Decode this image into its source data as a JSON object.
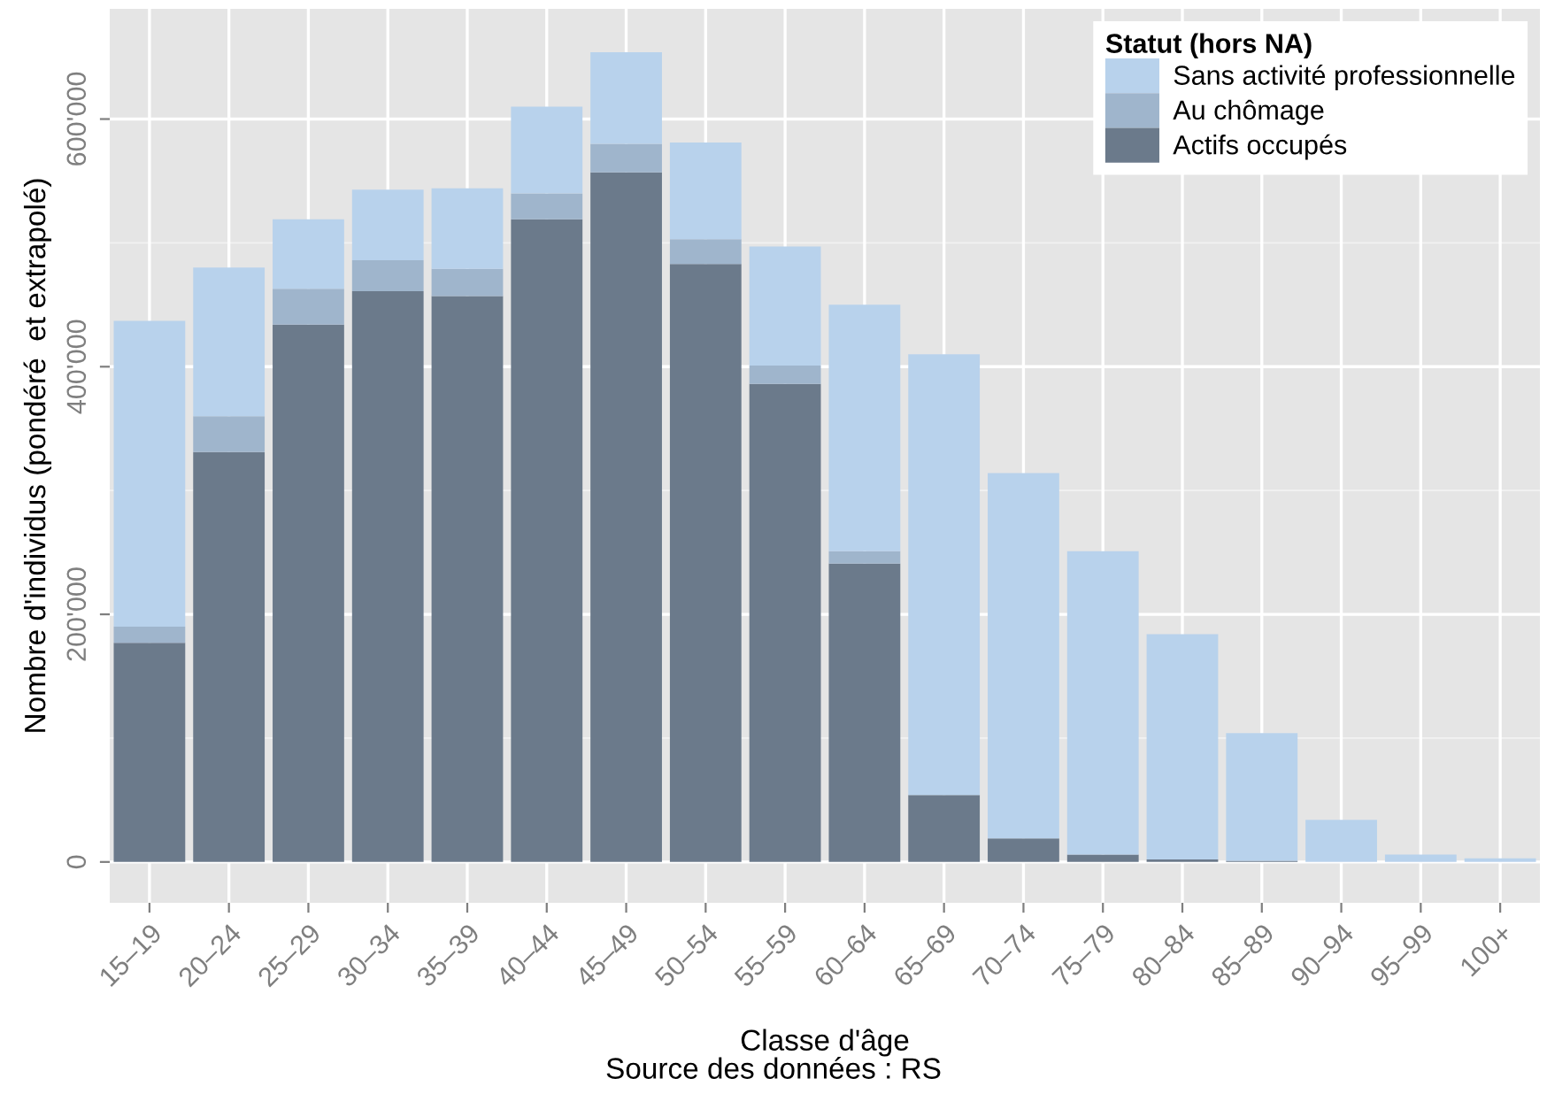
{
  "chart_data": {
    "type": "bar",
    "stacked": true,
    "xlabel": "Classe d'âge",
    "ylabel": "Nombre d'individus (pondéré  et extrapolé)",
    "legend_title": "Statut (hors NA)",
    "legend": "top right",
    "grid": true,
    "annotations": [
      "Source des données : RS"
    ],
    "categories": [
      "15–19",
      "20–24",
      "25–29",
      "30–34",
      "35–39",
      "40–44",
      "45–49",
      "50–54",
      "55–59",
      "60–64",
      "65–69",
      "70–74",
      "75–79",
      "80–84",
      "85–89",
      "90–94",
      "95–99",
      "100+"
    ],
    "ylim": [
      -33000,
      689000
    ],
    "yticks": [
      {
        "value": 0,
        "label": "0"
      },
      {
        "value": 200000,
        "label": "200'000"
      },
      {
        "value": 400000,
        "label": "400'000"
      },
      {
        "value": 600000,
        "label": "600'000"
      }
    ],
    "series": [
      {
        "name": "Actifs occupés",
        "color": "#6b7a8b",
        "values": [
          177000,
          331000,
          434000,
          461000,
          457000,
          519000,
          557000,
          483000,
          386000,
          241000,
          54000,
          19000,
          6000,
          2000,
          1000,
          0,
          0,
          0
        ]
      },
      {
        "name": "Au chômage",
        "color": "#9fb5cc",
        "values": [
          13000,
          29000,
          29000,
          25000,
          22000,
          21000,
          23000,
          20000,
          15000,
          10000,
          0,
          0,
          0,
          0,
          0,
          0,
          0,
          0
        ]
      },
      {
        "name": "Sans activité professionnelle",
        "color": "#b8d2ec",
        "values": [
          247000,
          120000,
          56000,
          57000,
          65000,
          70000,
          74000,
          78000,
          96000,
          199000,
          356000,
          295000,
          245000,
          182000,
          103000,
          34000,
          6000,
          3000
        ]
      }
    ]
  }
}
